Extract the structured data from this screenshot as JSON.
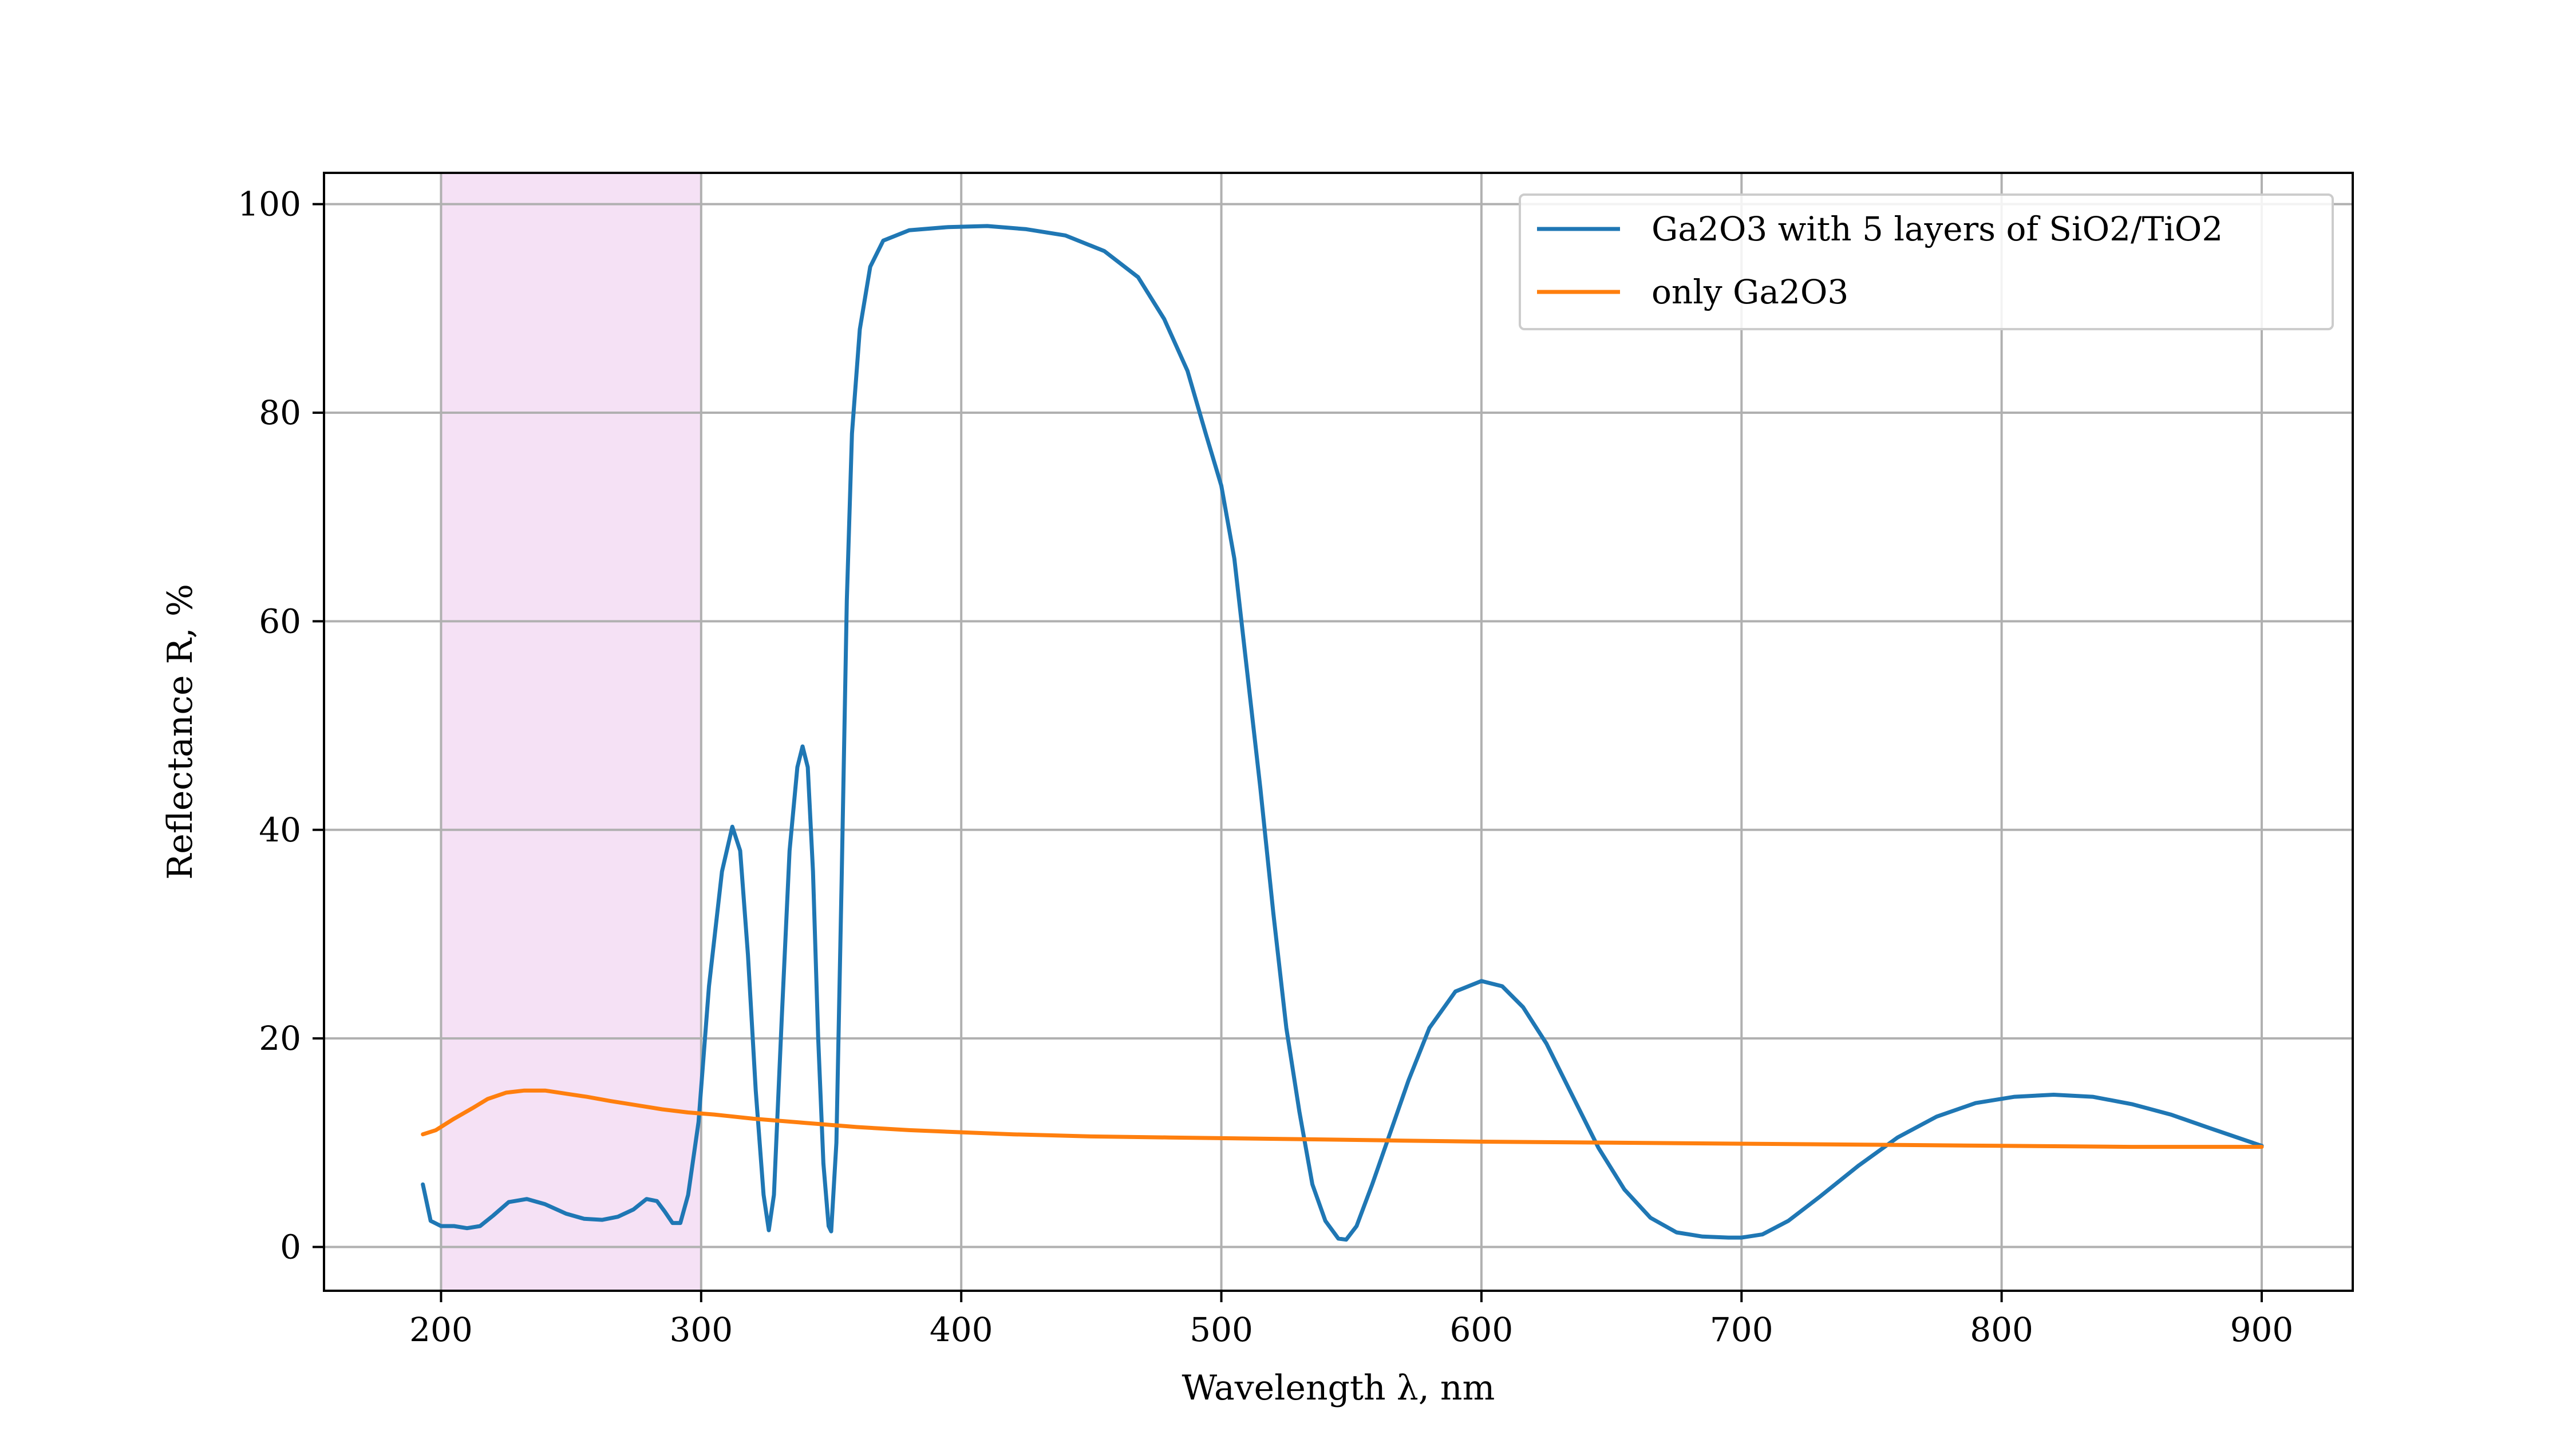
{
  "chart_data": {
    "type": "line",
    "title": "",
    "xlabel": "Wavelength λ, nm",
    "ylabel": "Reflectance R, %",
    "xlim": [
      155,
      935
    ],
    "ylim": [
      -4.2,
      103
    ],
    "xticks": [
      200,
      300,
      400,
      500,
      600,
      700,
      800,
      900
    ],
    "yticks": [
      0,
      20,
      40,
      60,
      80,
      100
    ],
    "grid": true,
    "legend_placement": "top-right",
    "shaded_region": {
      "x_start": 200,
      "x_end": 300,
      "color": "#f5e1f5"
    },
    "series": [
      {
        "name": "Ga2O3 with 5 layers of SiO2/TiO2",
        "color": "#1f77b4",
        "points": [
          [
            193,
            6
          ],
          [
            196,
            2.5
          ],
          [
            200,
            2
          ],
          [
            205,
            2
          ],
          [
            210,
            1.8
          ],
          [
            215,
            2
          ],
          [
            220,
            3
          ],
          [
            226,
            4.3
          ],
          [
            233,
            4.6
          ],
          [
            240,
            4.1
          ],
          [
            248,
            3.2
          ],
          [
            255,
            2.7
          ],
          [
            262,
            2.6
          ],
          [
            268,
            2.9
          ],
          [
            274,
            3.6
          ],
          [
            279,
            4.6
          ],
          [
            283,
            4.4
          ],
          [
            286,
            3.4
          ],
          [
            289,
            2.3
          ],
          [
            292,
            2.3
          ],
          [
            295,
            5
          ],
          [
            299,
            12
          ],
          [
            303,
            25
          ],
          [
            308,
            36
          ],
          [
            312,
            40.3
          ],
          [
            315,
            38
          ],
          [
            318,
            28
          ],
          [
            321,
            15
          ],
          [
            324,
            5
          ],
          [
            326,
            1.6
          ],
          [
            328,
            5
          ],
          [
            331,
            22
          ],
          [
            334,
            38
          ],
          [
            337,
            46
          ],
          [
            339,
            48
          ],
          [
            341,
            46
          ],
          [
            343,
            36
          ],
          [
            345,
            20
          ],
          [
            347,
            8
          ],
          [
            349,
            2
          ],
          [
            350,
            1.5
          ],
          [
            352,
            10
          ],
          [
            354,
            35
          ],
          [
            356,
            62
          ],
          [
            358,
            78
          ],
          [
            361,
            88
          ],
          [
            365,
            94
          ],
          [
            370,
            96.5
          ],
          [
            380,
            97.5
          ],
          [
            395,
            97.8
          ],
          [
            410,
            97.9
          ],
          [
            425,
            97.6
          ],
          [
            440,
            97
          ],
          [
            455,
            95.5
          ],
          [
            468,
            93
          ],
          [
            478,
            89
          ],
          [
            487,
            84
          ],
          [
            494,
            78
          ],
          [
            500,
            73
          ],
          [
            505,
            66
          ],
          [
            510,
            55
          ],
          [
            515,
            44
          ],
          [
            520,
            32
          ],
          [
            525,
            21
          ],
          [
            530,
            13
          ],
          [
            535,
            6
          ],
          [
            540,
            2.5
          ],
          [
            545,
            0.8
          ],
          [
            548,
            0.7
          ],
          [
            552,
            2
          ],
          [
            558,
            6
          ],
          [
            565,
            11
          ],
          [
            572,
            16
          ],
          [
            580,
            21
          ],
          [
            590,
            24.5
          ],
          [
            600,
            25.5
          ],
          [
            608,
            25
          ],
          [
            616,
            23
          ],
          [
            625,
            19.5
          ],
          [
            635,
            14.5
          ],
          [
            645,
            9.5
          ],
          [
            655,
            5.5
          ],
          [
            665,
            2.8
          ],
          [
            675,
            1.4
          ],
          [
            685,
            1
          ],
          [
            695,
            0.9
          ],
          [
            700,
            0.9
          ],
          [
            708,
            1.2
          ],
          [
            718,
            2.5
          ],
          [
            730,
            4.8
          ],
          [
            745,
            7.8
          ],
          [
            760,
            10.5
          ],
          [
            775,
            12.5
          ],
          [
            790,
            13.8
          ],
          [
            805,
            14.4
          ],
          [
            820,
            14.6
          ],
          [
            835,
            14.4
          ],
          [
            850,
            13.7
          ],
          [
            865,
            12.7
          ],
          [
            880,
            11.4
          ],
          [
            900,
            9.7
          ]
        ]
      },
      {
        "name": "only Ga2O3",
        "color": "#ff7f0e",
        "points": [
          [
            193,
            10.8
          ],
          [
            198,
            11.2
          ],
          [
            205,
            12.3
          ],
          [
            212,
            13.3
          ],
          [
            218,
            14.2
          ],
          [
            225,
            14.8
          ],
          [
            232,
            15
          ],
          [
            240,
            15
          ],
          [
            248,
            14.7
          ],
          [
            256,
            14.4
          ],
          [
            265,
            14
          ],
          [
            275,
            13.6
          ],
          [
            285,
            13.2
          ],
          [
            295,
            12.9
          ],
          [
            305,
            12.7
          ],
          [
            320,
            12.3
          ],
          [
            340,
            11.9
          ],
          [
            360,
            11.5
          ],
          [
            380,
            11.2
          ],
          [
            400,
            11
          ],
          [
            420,
            10.8
          ],
          [
            450,
            10.6
          ],
          [
            480,
            10.5
          ],
          [
            510,
            10.4
          ],
          [
            540,
            10.3
          ],
          [
            570,
            10.2
          ],
          [
            600,
            10.1
          ],
          [
            650,
            10
          ],
          [
            700,
            9.9
          ],
          [
            750,
            9.8
          ],
          [
            800,
            9.7
          ],
          [
            850,
            9.6
          ],
          [
            900,
            9.6
          ]
        ]
      }
    ]
  }
}
